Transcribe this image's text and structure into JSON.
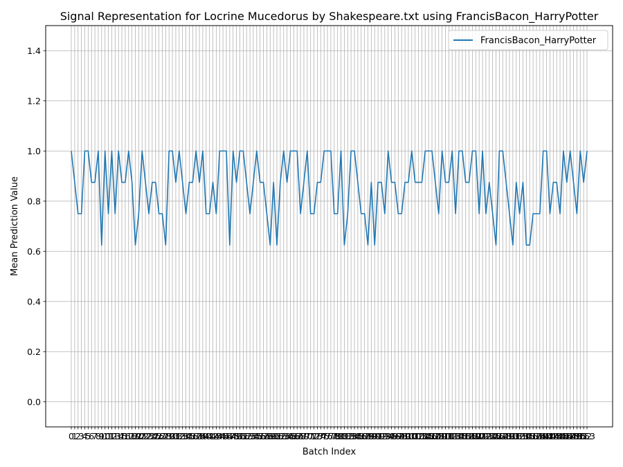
{
  "chart_data": {
    "type": "line",
    "title": "Signal Representation for Locrine Mucedorus by Shakespeare.txt using FrancisBacon_HarryPotter",
    "xlabel": "Batch Index",
    "ylabel": "Mean Prediction Value",
    "ylim": [
      -0.1,
      1.5
    ],
    "yticks": [
      0.0,
      0.2,
      0.4,
      0.6,
      0.8,
      1.0,
      1.2,
      1.4
    ],
    "ytick_labels": [
      "0.0",
      "0.2",
      "0.4",
      "0.6",
      "0.8",
      "1.0",
      "1.2",
      "1.4"
    ],
    "x_min": 0,
    "x_max": 153,
    "grid": true,
    "legend_position": "top-right",
    "series": [
      {
        "name": "FrancisBacon_HarryPotter",
        "color": "#1f77b4",
        "values": [
          1.0,
          0.875,
          0.75,
          0.75,
          1.0,
          1.0,
          0.875,
          0.875,
          1.0,
          0.625,
          1.0,
          0.75,
          1.0,
          0.75,
          1.0,
          0.875,
          0.875,
          1.0,
          0.875,
          0.625,
          0.75,
          1.0,
          0.875,
          0.75,
          0.875,
          0.875,
          0.75,
          0.75,
          0.625,
          1.0,
          1.0,
          0.875,
          1.0,
          0.875,
          0.75,
          0.875,
          0.875,
          1.0,
          0.875,
          1.0,
          0.75,
          0.75,
          0.875,
          0.75,
          1.0,
          1.0,
          1.0,
          0.625,
          1.0,
          0.875,
          1.0,
          1.0,
          0.875,
          0.75,
          0.875,
          1.0,
          0.875,
          0.875,
          0.75,
          0.625,
          0.875,
          0.625,
          0.875,
          1.0,
          0.875,
          1.0,
          1.0,
          1.0,
          0.75,
          0.875,
          1.0,
          0.75,
          0.75,
          0.875,
          0.875,
          1.0,
          1.0,
          1.0,
          0.75,
          0.75,
          1.0,
          0.625,
          0.75,
          1.0,
          1.0,
          0.875,
          0.75,
          0.75,
          0.625,
          0.875,
          0.625,
          0.875,
          0.875,
          0.75,
          1.0,
          0.875,
          0.875,
          0.75,
          0.75,
          0.875,
          0.875,
          1.0,
          0.875,
          0.875,
          0.875,
          1.0,
          1.0,
          1.0,
          0.875,
          0.75,
          1.0,
          0.875,
          0.875,
          1.0,
          0.75,
          1.0,
          1.0,
          0.875,
          0.875,
          1.0,
          1.0,
          0.75,
          1.0,
          0.75,
          0.875,
          0.75,
          0.625,
          1.0,
          1.0,
          0.875,
          0.75,
          0.625,
          0.875,
          0.75,
          0.875,
          0.625,
          0.625,
          0.75,
          0.75,
          0.75,
          1.0,
          1.0,
          0.75,
          0.875,
          0.875,
          0.75,
          1.0,
          0.875,
          1.0,
          0.875,
          0.75,
          1.0,
          0.875,
          1.0
        ]
      }
    ]
  }
}
